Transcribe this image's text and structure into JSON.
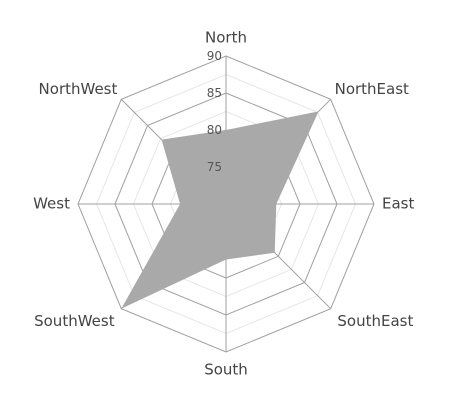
{
  "chart_data": {
    "type": "radar",
    "categories": [
      "North",
      "NorthEast",
      "East",
      "SouthEast",
      "South",
      "SouthWest",
      "West",
      "NorthWest"
    ],
    "series": [
      {
        "values": [
          80,
          87.7,
          76.8,
          79.3,
          77.5,
          90,
          76.2,
          82.3
        ],
        "color": "#a9a9a9"
      }
    ],
    "rlim": [
      70,
      90
    ],
    "ticks": [
      75,
      80,
      85,
      90
    ],
    "grid_shape": "polygon",
    "grid_color": "#a0a0a0",
    "minor_grid_color": "#e6e6e6"
  }
}
